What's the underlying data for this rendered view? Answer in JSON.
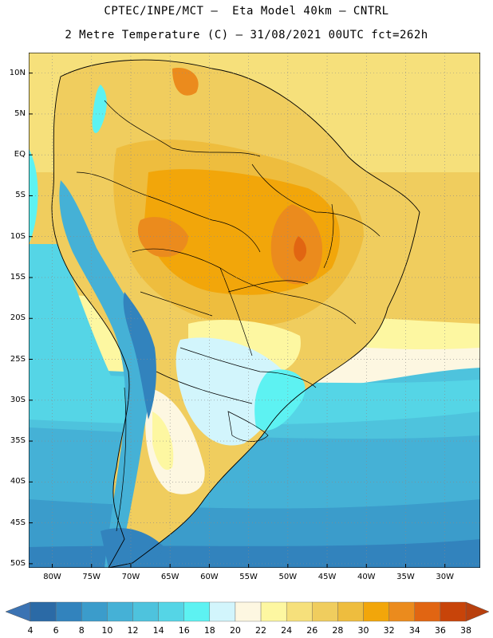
{
  "header": {
    "title_line1": "CPTEC/INPE/MCT –  Eta Model 40km – CNTRL",
    "title_line2": "2 Metre Temperature (C) – 31/08/2021 00UTC fct=262h"
  },
  "map": {
    "lat_ticks": [
      "10N",
      "5N",
      "EQ",
      "5S",
      "10S",
      "15S",
      "20S",
      "25S",
      "30S",
      "35S",
      "40S",
      "45S",
      "50S"
    ],
    "lon_ticks": [
      "80W",
      "75W",
      "70W",
      "65W",
      "60W",
      "55W",
      "50W",
      "45W",
      "40W",
      "35W",
      "30W"
    ],
    "extent": {
      "lon_min": -83,
      "lon_max": -25.5,
      "lat_max": 12.5,
      "lat_min": -50.5
    },
    "gridlines": "dotted",
    "coastline_color": "#000000"
  },
  "colorbar": {
    "levels": [
      "4",
      "6",
      "8",
      "10",
      "12",
      "14",
      "16",
      "18",
      "20",
      "22",
      "24",
      "26",
      "28",
      "30",
      "32",
      "34",
      "36",
      "38"
    ],
    "colors": [
      "#2b6aa6",
      "#3283bd",
      "#3b9ccb",
      "#45b1d6",
      "#4ec3dd",
      "#55d5e6",
      "#5df2f2",
      "#d2f5fc",
      "#fdf7e1",
      "#fdf7a1",
      "#f6e07b",
      "#f0cd5e",
      "#eebd3e",
      "#f2a60a",
      "#eb8b1d",
      "#e16512",
      "#c84409"
    ],
    "under_color": "#3b73b3",
    "over_color": "#b8400e"
  }
}
